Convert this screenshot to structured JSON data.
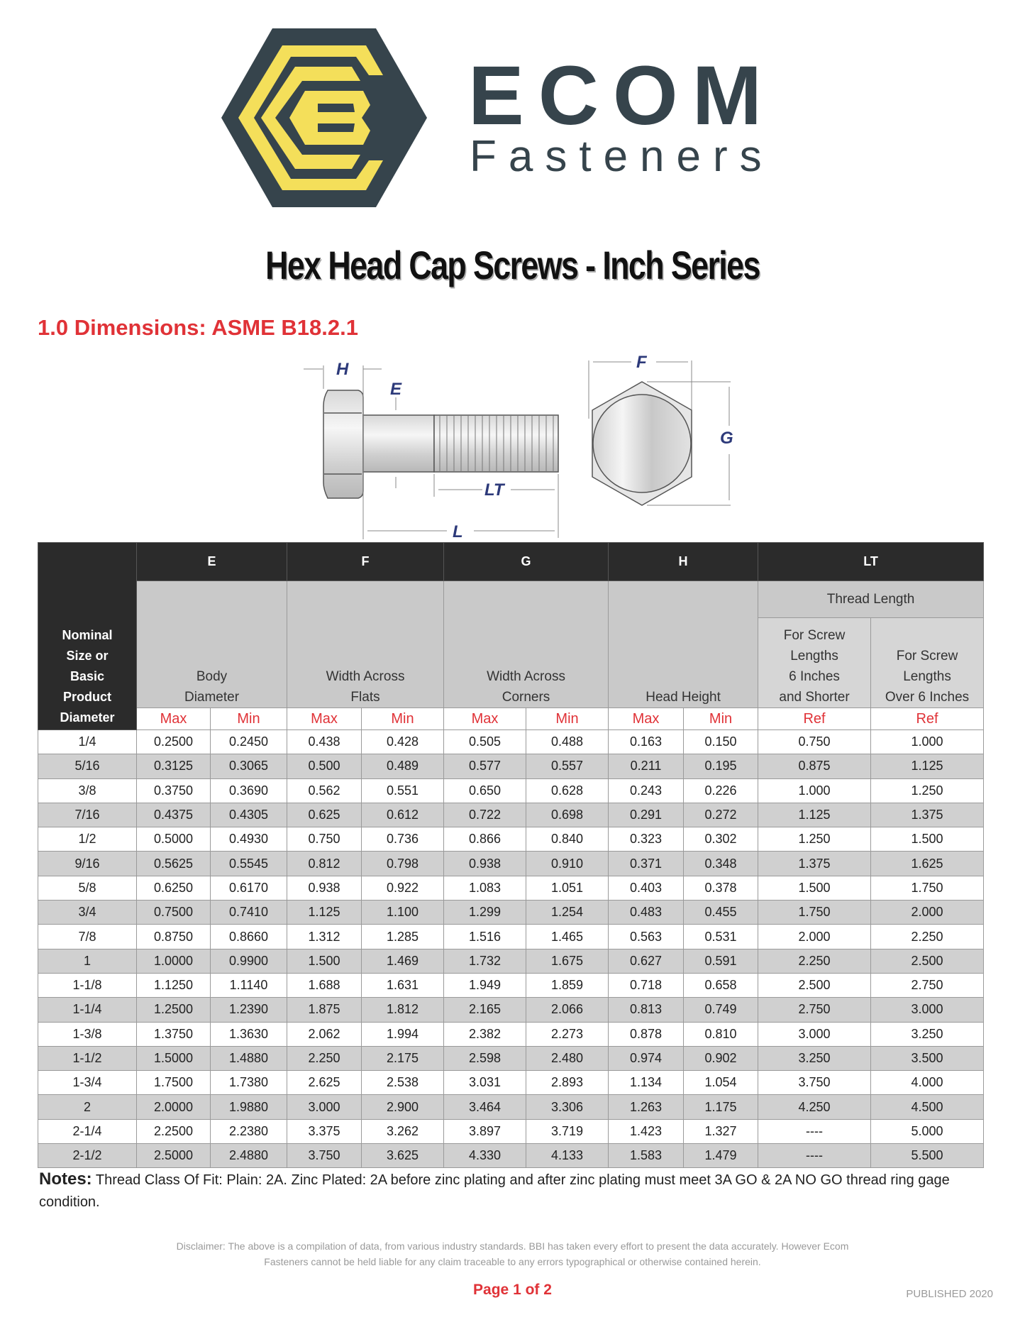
{
  "brand": {
    "name": "ECOM",
    "sub": "Fasteners",
    "colors": {
      "dark": "#36444c",
      "yellow": "#f4df5a"
    }
  },
  "title": "Hex Head Cap Screws - Inch Series",
  "section_heading": "1.0  Dimensions: ASME B18.2.1",
  "diagram": {
    "labels": {
      "H": "H",
      "E": "E",
      "LT": "LT",
      "L": "L",
      "F": "F",
      "G": "G"
    }
  },
  "table": {
    "nominal_header": [
      "Nominal",
      "Size or",
      "Basic",
      "Product",
      "Diameter"
    ],
    "groups": [
      {
        "code": "E",
        "desc": [
          "Body",
          "Diameter"
        ]
      },
      {
        "code": "F",
        "desc": [
          "Width Across",
          "Flats"
        ]
      },
      {
        "code": "G",
        "desc": [
          "Width Across",
          "Corners"
        ]
      },
      {
        "code": "H",
        "desc": [
          "Head Height"
        ]
      },
      {
        "code": "LT",
        "desc": [
          "Thread Length"
        ]
      }
    ],
    "lt_sub": [
      [
        "For Screw",
        "Lengths",
        "6 Inches",
        "and Shorter"
      ],
      [
        "For Screw",
        "Lengths",
        "Over 6 Inches"
      ]
    ],
    "sub_headers": [
      "Max",
      "Min",
      "Max",
      "Min",
      "Max",
      "Min",
      "Max",
      "Min",
      "Ref",
      "Ref"
    ],
    "rows": [
      [
        "1/4",
        "0.2500",
        "0.2450",
        "0.438",
        "0.428",
        "0.505",
        "0.488",
        "0.163",
        "0.150",
        "0.750",
        "1.000"
      ],
      [
        "5/16",
        "0.3125",
        "0.3065",
        "0.500",
        "0.489",
        "0.577",
        "0.557",
        "0.211",
        "0.195",
        "0.875",
        "1.125"
      ],
      [
        "3/8",
        "0.3750",
        "0.3690",
        "0.562",
        "0.551",
        "0.650",
        "0.628",
        "0.243",
        "0.226",
        "1.000",
        "1.250"
      ],
      [
        "7/16",
        "0.4375",
        "0.4305",
        "0.625",
        "0.612",
        "0.722",
        "0.698",
        "0.291",
        "0.272",
        "1.125",
        "1.375"
      ],
      [
        "1/2",
        "0.5000",
        "0.4930",
        "0.750",
        "0.736",
        "0.866",
        "0.840",
        "0.323",
        "0.302",
        "1.250",
        "1.500"
      ],
      [
        "9/16",
        "0.5625",
        "0.5545",
        "0.812",
        "0.798",
        "0.938",
        "0.910",
        "0.371",
        "0.348",
        "1.375",
        "1.625"
      ],
      [
        "5/8",
        "0.6250",
        "0.6170",
        "0.938",
        "0.922",
        "1.083",
        "1.051",
        "0.403",
        "0.378",
        "1.500",
        "1.750"
      ],
      [
        "3/4",
        "0.7500",
        "0.7410",
        "1.125",
        "1.100",
        "1.299",
        "1.254",
        "0.483",
        "0.455",
        "1.750",
        "2.000"
      ],
      [
        "7/8",
        "0.8750",
        "0.8660",
        "1.312",
        "1.285",
        "1.516",
        "1.465",
        "0.563",
        "0.531",
        "2.000",
        "2.250"
      ],
      [
        "1",
        "1.0000",
        "0.9900",
        "1.500",
        "1.469",
        "1.732",
        "1.675",
        "0.627",
        "0.591",
        "2.250",
        "2.500"
      ],
      [
        "1-1/8",
        "1.1250",
        "1.1140",
        "1.688",
        "1.631",
        "1.949",
        "1.859",
        "0.718",
        "0.658",
        "2.500",
        "2.750"
      ],
      [
        "1-1/4",
        "1.2500",
        "1.2390",
        "1.875",
        "1.812",
        "2.165",
        "2.066",
        "0.813",
        "0.749",
        "2.750",
        "3.000"
      ],
      [
        "1-3/8",
        "1.3750",
        "1.3630",
        "2.062",
        "1.994",
        "2.382",
        "2.273",
        "0.878",
        "0.810",
        "3.000",
        "3.250"
      ],
      [
        "1-1/2",
        "1.5000",
        "1.4880",
        "2.250",
        "2.175",
        "2.598",
        "2.480",
        "0.974",
        "0.902",
        "3.250",
        "3.500"
      ],
      [
        "1-3/4",
        "1.7500",
        "1.7380",
        "2.625",
        "2.538",
        "3.031",
        "2.893",
        "1.134",
        "1.054",
        "3.750",
        "4.000"
      ],
      [
        "2",
        "2.0000",
        "1.9880",
        "3.000",
        "2.900",
        "3.464",
        "3.306",
        "1.263",
        "1.175",
        "4.250",
        "4.500"
      ],
      [
        "2-1/4",
        "2.2500",
        "2.2380",
        "3.375",
        "3.262",
        "3.897",
        "3.719",
        "1.423",
        "1.327",
        "----",
        "5.000"
      ],
      [
        "2-1/2",
        "2.5000",
        "2.4880",
        "3.750",
        "3.625",
        "4.330",
        "4.133",
        "1.583",
        "1.479",
        "----",
        "5.500"
      ]
    ]
  },
  "notes": {
    "label": "Notes:",
    "text": " Thread Class Of Fit: Plain: 2A. Zinc Plated: 2A before zinc plating and after zinc plating must meet 3A GO & 2A NO GO thread ring gage condition."
  },
  "disclaimer": "Disclaimer: The above is a compilation of data, from various industry standards. BBI has taken every effort to present the data accurately. However Ecom Fasteners cannot be held liable for any claim traceable to any errors typographical or otherwise contained herein.",
  "page_number": "Page 1 of 2",
  "published": "PUBLISHED 2020",
  "colors": {
    "accent_red": "#e03237",
    "header_dark": "#2b2b2b",
    "header_gray": "#c9c9c9",
    "row_alt": "#d0d0d0"
  }
}
